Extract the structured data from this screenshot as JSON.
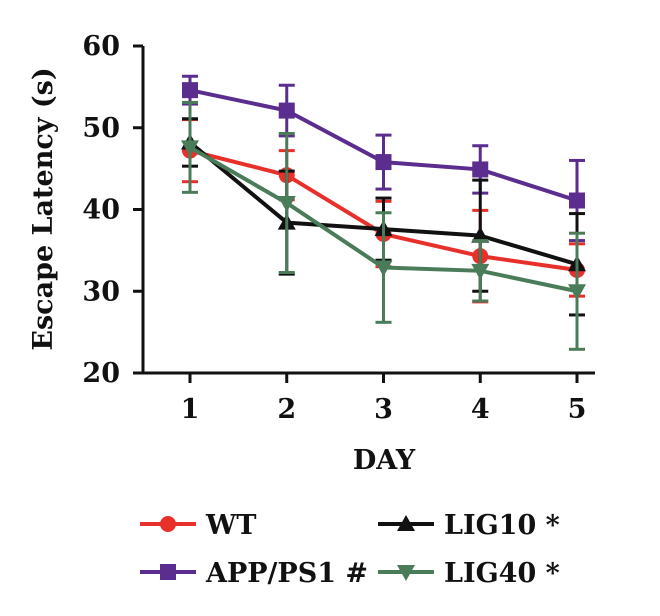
{
  "chart_data": {
    "type": "line",
    "xlabel": "DAY",
    "ylabel": "Escape Latency (s)",
    "x": [
      1,
      2,
      3,
      4,
      5
    ],
    "ylim": [
      20,
      60
    ],
    "yticks": [
      20,
      30,
      40,
      50,
      60
    ],
    "grid": false,
    "legend_position": "bottom",
    "series": [
      {
        "name": "WT",
        "color": "#e8302a",
        "marker": "circle",
        "values": [
          47.2,
          44.2,
          37.0,
          34.3,
          32.6
        ],
        "errors": [
          3.8,
          3.0,
          4.0,
          5.6,
          3.2
        ]
      },
      {
        "name": "APP/PS1 #",
        "color": "#5b2d8e",
        "marker": "square",
        "values": [
          54.6,
          52.1,
          45.8,
          44.9,
          41.1
        ],
        "errors": [
          1.7,
          3.1,
          3.3,
          2.9,
          4.9
        ]
      },
      {
        "name": "LIG10 *",
        "color": "#111111",
        "marker": "triangle-up",
        "values": [
          48.2,
          38.4,
          37.6,
          36.8,
          33.3
        ],
        "errors": [
          2.9,
          6.3,
          3.8,
          6.8,
          6.2
        ]
      },
      {
        "name": "LIG40 *",
        "color": "#4a7c59",
        "marker": "triangle-down",
        "values": [
          47.6,
          40.8,
          32.9,
          32.5,
          30.0
        ],
        "errors": [
          5.5,
          8.5,
          6.7,
          3.7,
          7.1
        ]
      }
    ]
  }
}
